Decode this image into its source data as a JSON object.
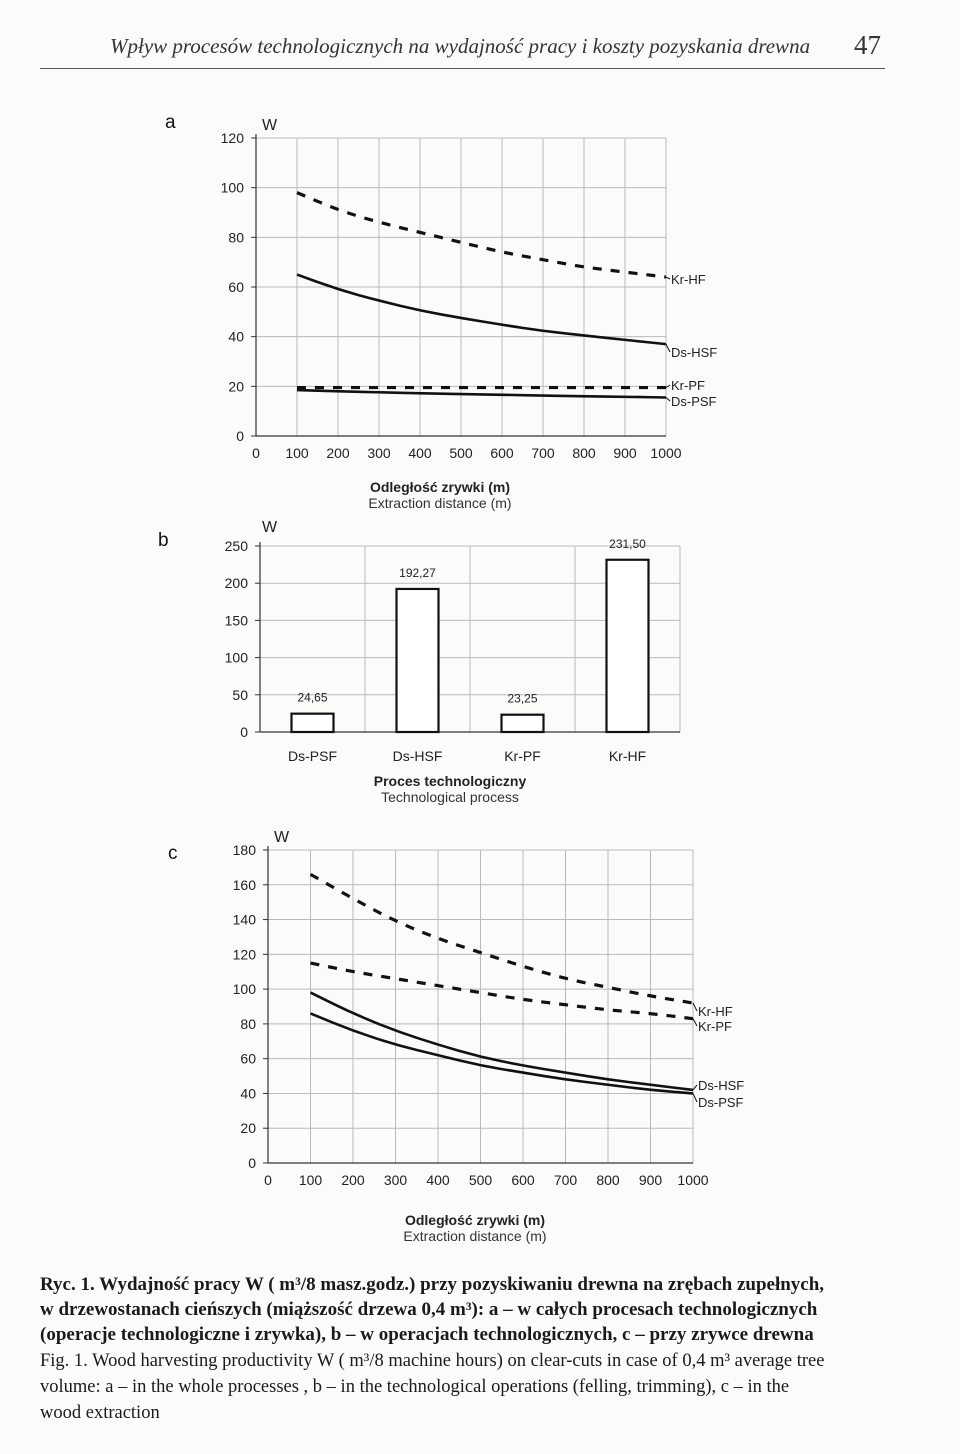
{
  "header": {
    "title": "Wpływ procesów technologicznych na wydajność pracy i koszty pozyskania drewna",
    "page_number": "47"
  },
  "chart_data": [
    {
      "panel": "a",
      "type": "line",
      "ylabel": "W",
      "xlabel": "Odległość zrywki (m)",
      "xlabel_en": "Extraction distance (m)",
      "xlim": [
        0,
        1000
      ],
      "ylim": [
        0,
        120
      ],
      "xticks": [
        "0",
        "100",
        "200",
        "300",
        "400",
        "500",
        "600",
        "700",
        "800",
        "900",
        "1000"
      ],
      "yticks": [
        "0",
        "20",
        "40",
        "60",
        "80",
        "100",
        "120"
      ],
      "grid": true,
      "x": [
        100,
        200,
        300,
        400,
        500,
        600,
        700,
        800,
        900,
        1000
      ],
      "series": [
        {
          "name": "Kr-HF",
          "style": "dashed",
          "values": [
            98,
            91,
            86,
            82,
            78,
            74,
            71,
            68,
            66,
            64
          ]
        },
        {
          "name": "Ds-HSF",
          "style": "solid",
          "values": [
            65,
            59,
            54.5,
            50.5,
            47.5,
            44.8,
            42.3,
            40.5,
            38.7,
            37
          ]
        },
        {
          "name": "Kr-PF",
          "style": "dashed",
          "values": [
            19.5,
            19.5,
            19.5,
            19.5,
            19.5,
            19.5,
            19.5,
            19.5,
            19.5,
            19.5
          ]
        },
        {
          "name": "Ds-PSF",
          "style": "solid",
          "values": [
            18.5,
            18.0,
            17.6,
            17.2,
            16.9,
            16.6,
            16.3,
            16.0,
            15.8,
            15.5
          ]
        }
      ]
    },
    {
      "panel": "b",
      "type": "bar",
      "ylabel": "W",
      "xlabel": "Proces technologiczny",
      "xlabel_en": "Technological process",
      "ylim": [
        0,
        250
      ],
      "yticks": [
        "0",
        "50",
        "100",
        "150",
        "200",
        "250"
      ],
      "grid": true,
      "categories": [
        "Ds-PSF",
        "Ds-HSF",
        "Kr-PF",
        "Kr-HF"
      ],
      "values": [
        24.65,
        192.27,
        23.25,
        231.5
      ],
      "value_labels": [
        "24,65",
        "192,27",
        "23,25",
        "231,50"
      ]
    },
    {
      "panel": "c",
      "type": "line",
      "ylabel": "W",
      "xlabel": "Odległość zrywki (m)",
      "xlabel_en": "Extraction distance (m)",
      "xlim": [
        0,
        1000
      ],
      "ylim": [
        0,
        180
      ],
      "xticks": [
        "0",
        "100",
        "200",
        "300",
        "400",
        "500",
        "600",
        "700",
        "800",
        "900",
        "1000"
      ],
      "yticks": [
        "0",
        "20",
        "40",
        "60",
        "80",
        "100",
        "120",
        "140",
        "160",
        "180"
      ],
      "grid": true,
      "x": [
        100,
        200,
        300,
        400,
        500,
        600,
        700,
        800,
        900,
        1000
      ],
      "series": [
        {
          "name": "Kr-HF",
          "style": "dashed",
          "values": [
            166,
            152,
            139,
            129,
            121,
            113,
            106,
            101,
            96,
            92
          ]
        },
        {
          "name": "Kr-PF",
          "style": "dashed",
          "values": [
            115,
            110,
            106,
            102,
            98,
            94,
            91,
            88,
            86,
            83
          ]
        },
        {
          "name": "Ds-HSF",
          "style": "solid",
          "values": [
            98,
            86,
            76,
            68,
            61,
            56,
            52,
            48,
            45,
            42
          ]
        },
        {
          "name": "Ds-PSF",
          "style": "solid",
          "values": [
            86,
            76,
            68,
            62,
            56,
            52,
            48,
            45,
            42,
            40
          ]
        }
      ]
    }
  ],
  "panels": {
    "a_letter": "a",
    "b_letter": "b",
    "c_letter": "c"
  },
  "caption": {
    "pl": [
      "Ryc. 1. Wydajność pracy W ( m³/8 masz.godz.) przy pozyskiwaniu drewna na zrębach zupełnych,",
      "w drzewostanach cieńszych (miąższość drzewa 0,4 m³): a – w całych procesach technologicznych",
      "(operacje technologiczne i zrywka), b – w operacjach technologicznych, c – przy zrywce drewna"
    ],
    "en": [
      "Fig. 1. Wood harvesting productivity W ( m³/8 machine hours) on clear-cuts in case of 0,4 m³ average tree",
      "volume: a – in the whole processes , b – in the technological operations (felling, trimming), c – in the",
      "wood extraction"
    ]
  }
}
